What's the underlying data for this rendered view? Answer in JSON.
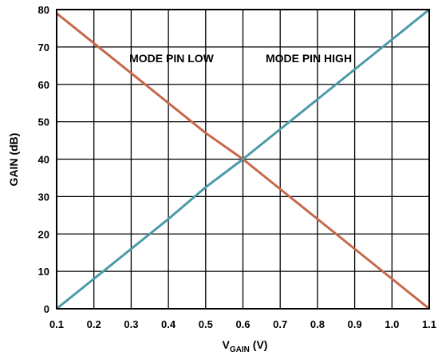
{
  "chart_data": {
    "type": "line",
    "title": "",
    "xlabel": {
      "main": "V",
      "sub": "GAIN",
      "unit": " (V)"
    },
    "ylabel": "GAIN (dB)",
    "xlim": [
      0.1,
      1.1
    ],
    "ylim": [
      0,
      80
    ],
    "x_ticks": [
      "0.1",
      "0.2",
      "0.3",
      "0.4",
      "0.5",
      "0.6",
      "0.7",
      "0.8",
      "0.9",
      "1.0",
      "1.1"
    ],
    "y_ticks": [
      "0",
      "10",
      "20",
      "30",
      "40",
      "50",
      "60",
      "70",
      "80"
    ],
    "grid": true,
    "annotations": [
      "MODE PIN LOW",
      "MODE PIN HIGH"
    ],
    "series": [
      {
        "color": "#c8674a",
        "x": [
          0.1,
          0.2,
          0.3,
          0.4,
          0.5,
          0.6,
          0.7,
          0.8,
          0.9,
          1.0,
          1.1
        ],
        "values": [
          79,
          71,
          63,
          55,
          47,
          40,
          32,
          24,
          16,
          8,
          0
        ]
      },
      {
        "color": "#4a9aa8",
        "x": [
          0.1,
          0.2,
          0.3,
          0.4,
          0.5,
          0.6,
          0.7,
          0.8,
          0.9,
          1.0,
          1.1
        ],
        "values": [
          0,
          8,
          16,
          24,
          32.5,
          40,
          48,
          56,
          64,
          72,
          80
        ]
      }
    ]
  }
}
